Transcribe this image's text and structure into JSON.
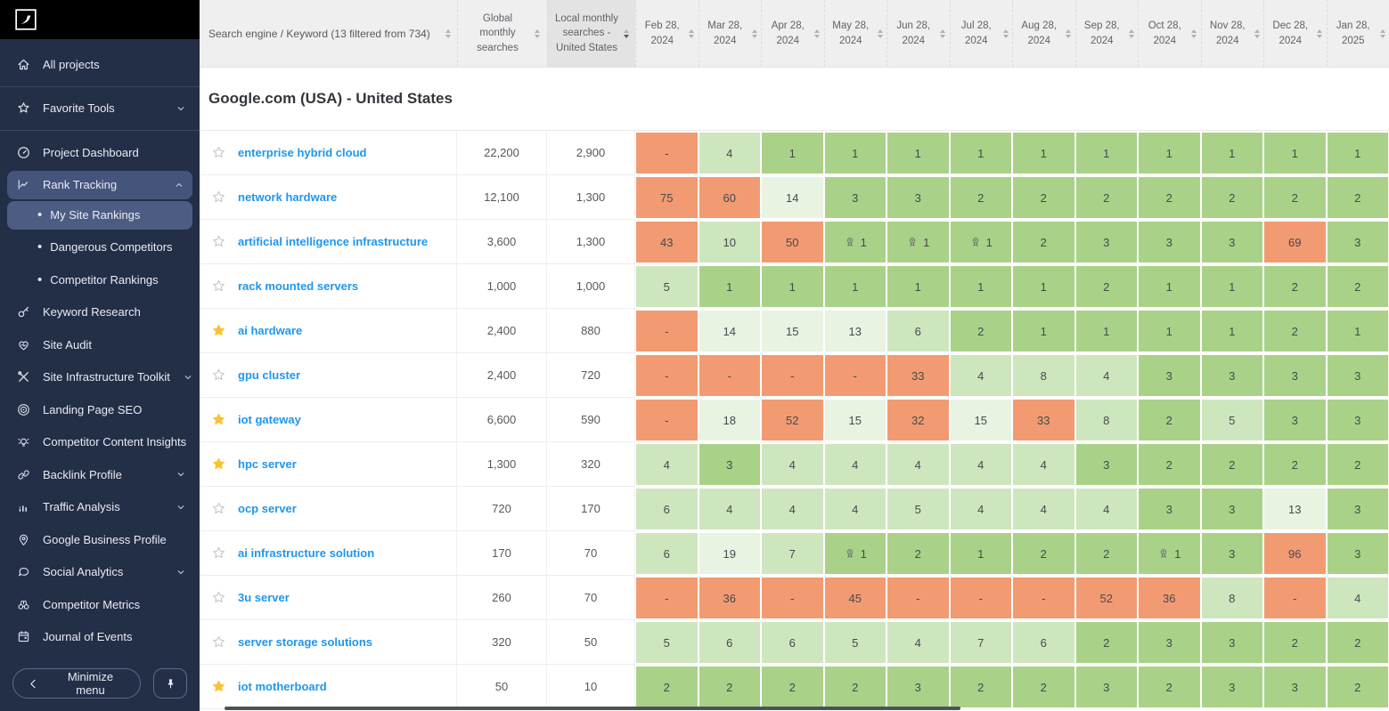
{
  "colors": {
    "accent_blue": "#1E96F0",
    "star_yellow": "#FCC22F",
    "rank_green_strong": "#A9D288",
    "rank_green_mid": "#CEE6BE",
    "rank_green_pale": "#E9F3E1",
    "rank_orange": "#F29B72",
    "sidebar_bg": "#232E47",
    "sidebar_active_bg": "#45547B"
  },
  "sidebar": {
    "minimize_label": "Minimize menu",
    "items": [
      {
        "label": "All projects",
        "icon": "home-icon",
        "divider_after": true
      },
      {
        "label": "Favorite Tools",
        "icon": "star-icon",
        "chevron": "down",
        "divider_after": true
      },
      {
        "label": "Project Dashboard",
        "icon": "gauge-icon"
      },
      {
        "label": "Rank Tracking",
        "icon": "line-chart-icon",
        "chevron": "up",
        "active": true
      },
      {
        "label": "My Site Rankings",
        "sub": true,
        "active": true
      },
      {
        "label": "Dangerous Competitors",
        "sub": true
      },
      {
        "label": "Competitor Rankings",
        "sub": true
      },
      {
        "label": "Keyword Research",
        "icon": "key-icon"
      },
      {
        "label": "Site Audit",
        "icon": "heart-pulse-icon"
      },
      {
        "label": "Site Infrastructure Toolkit",
        "icon": "tools-icon",
        "chevron": "down"
      },
      {
        "label": "Landing Page SEO",
        "icon": "target-icon"
      },
      {
        "label": "Competitor Content Insights",
        "icon": "lightbulb-icon"
      },
      {
        "label": "Backlink Profile",
        "icon": "link-icon",
        "chevron": "down"
      },
      {
        "label": "Traffic Analysis",
        "icon": "bar-chart-icon",
        "chevron": "down"
      },
      {
        "label": "Google Business Profile",
        "icon": "location-pin-icon"
      },
      {
        "label": "Social Analytics",
        "icon": "chat-bubble-icon",
        "chevron": "down"
      },
      {
        "label": "Competitor Metrics",
        "icon": "binoculars-icon"
      },
      {
        "label": "Journal of Events",
        "icon": "calendar-icon"
      }
    ]
  },
  "table": {
    "section_title": "Google.com (USA) - United States",
    "header": {
      "keyword_column": "Search engine / Keyword (13 filtered from 734)",
      "global_column": "Global monthly searches",
      "local_column": "Local monthly searches - United States",
      "date_columns": [
        "Feb 28, 2024",
        "Mar 28, 2024",
        "Apr 28, 2024",
        "May 28, 2024",
        "Jun 28, 2024",
        "Jul 28, 2024",
        "Aug 28, 2024",
        "Sep 28, 2024",
        "Oct 28, 2024",
        "Nov 28, 2024",
        "Dec 28, 2024",
        "Jan 28, 2025"
      ]
    },
    "rows": [
      {
        "starred": false,
        "keyword": "enterprise hybrid cloud",
        "global_monthly": "22,200",
        "local_monthly": "2,900",
        "ranks": [
          "-",
          "4",
          "1",
          "1",
          "1",
          "1",
          "1",
          "1",
          "1",
          "1",
          "1",
          "1"
        ],
        "medals": []
      },
      {
        "starred": false,
        "keyword": "network hardware",
        "global_monthly": "12,100",
        "local_monthly": "1,300",
        "ranks": [
          "75",
          "60",
          "14",
          "3",
          "3",
          "2",
          "2",
          "2",
          "2",
          "2",
          "2",
          "2"
        ],
        "medals": []
      },
      {
        "starred": false,
        "keyword": "artificial intelligence infrastructure",
        "global_monthly": "3,600",
        "local_monthly": "1,300",
        "ranks": [
          "43",
          "10",
          "50",
          "1",
          "1",
          "1",
          "2",
          "3",
          "3",
          "3",
          "69",
          "3"
        ],
        "medals": [
          3,
          4,
          5
        ]
      },
      {
        "starred": false,
        "keyword": "rack mounted servers",
        "global_monthly": "1,000",
        "local_monthly": "1,000",
        "ranks": [
          "5",
          "1",
          "1",
          "1",
          "1",
          "1",
          "1",
          "2",
          "1",
          "1",
          "2",
          "2"
        ],
        "medals": []
      },
      {
        "starred": true,
        "keyword": "ai hardware",
        "global_monthly": "2,400",
        "local_monthly": "880",
        "ranks": [
          "-",
          "14",
          "15",
          "13",
          "6",
          "2",
          "1",
          "1",
          "1",
          "1",
          "2",
          "1"
        ],
        "medals": []
      },
      {
        "starred": false,
        "keyword": "gpu cluster",
        "global_monthly": "2,400",
        "local_monthly": "720",
        "ranks": [
          "-",
          "-",
          "-",
          "-",
          "33",
          "4",
          "8",
          "4",
          "3",
          "3",
          "3",
          "3"
        ],
        "medals": []
      },
      {
        "starred": true,
        "keyword": "iot gateway",
        "global_monthly": "6,600",
        "local_monthly": "590",
        "ranks": [
          "-",
          "18",
          "52",
          "15",
          "32",
          "15",
          "33",
          "8",
          "2",
          "5",
          "3",
          "3"
        ],
        "medals": []
      },
      {
        "starred": true,
        "keyword": "hpc server",
        "global_monthly": "1,300",
        "local_monthly": "320",
        "ranks": [
          "4",
          "3",
          "4",
          "4",
          "4",
          "4",
          "4",
          "3",
          "2",
          "2",
          "2",
          "2"
        ],
        "medals": []
      },
      {
        "starred": false,
        "keyword": "ocp server",
        "global_monthly": "720",
        "local_monthly": "170",
        "ranks": [
          "6",
          "4",
          "4",
          "4",
          "5",
          "4",
          "4",
          "4",
          "3",
          "3",
          "13",
          "3"
        ],
        "medals": []
      },
      {
        "starred": false,
        "keyword": "ai infrastructure solution",
        "global_monthly": "170",
        "local_monthly": "70",
        "ranks": [
          "6",
          "19",
          "7",
          "1",
          "2",
          "1",
          "2",
          "2",
          "1",
          "3",
          "96",
          "3"
        ],
        "medals": [
          3,
          8
        ]
      },
      {
        "starred": false,
        "keyword": "3u server",
        "global_monthly": "260",
        "local_monthly": "70",
        "ranks": [
          "-",
          "36",
          "-",
          "45",
          "-",
          "-",
          "-",
          "52",
          "36",
          "8",
          "-",
          "4"
        ],
        "medals": []
      },
      {
        "starred": false,
        "keyword": "server storage solutions",
        "global_monthly": "320",
        "local_monthly": "50",
        "ranks": [
          "5",
          "6",
          "6",
          "5",
          "4",
          "7",
          "6",
          "2",
          "3",
          "3",
          "2",
          "2"
        ],
        "medals": []
      },
      {
        "starred": true,
        "keyword": "iot motherboard",
        "global_monthly": "50",
        "local_monthly": "10",
        "ranks": [
          "2",
          "2",
          "2",
          "2",
          "3",
          "2",
          "2",
          "3",
          "2",
          "3",
          "3",
          "2"
        ],
        "medals": []
      }
    ]
  }
}
